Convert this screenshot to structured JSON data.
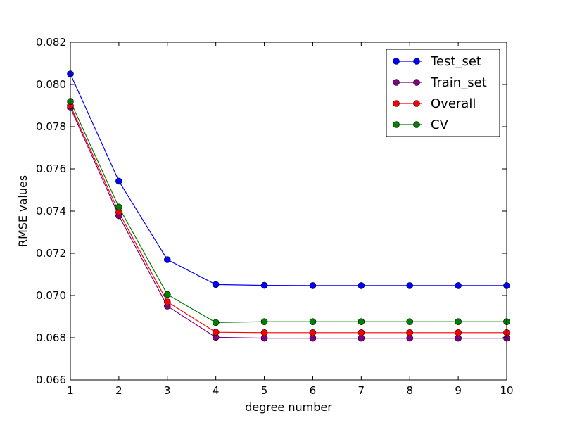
{
  "chart_data": {
    "type": "line",
    "title": "",
    "xlabel": "degree number",
    "ylabel": "RMSE values",
    "xlim": [
      1,
      10
    ],
    "ylim": [
      0.066,
      0.082
    ],
    "x": [
      1,
      2,
      3,
      4,
      5,
      6,
      7,
      8,
      9,
      10
    ],
    "x_ticks": [
      "1",
      "2",
      "3",
      "4",
      "5",
      "6",
      "7",
      "8",
      "9",
      "10"
    ],
    "y_tick_values": [
      0.066,
      0.068,
      0.07,
      0.072,
      0.074,
      0.076,
      0.078,
      0.08,
      0.082
    ],
    "y_ticks": [
      "0.066",
      "0.068",
      "0.070",
      "0.072",
      "0.074",
      "0.076",
      "0.078",
      "0.080",
      "0.082"
    ],
    "grid": false,
    "legend_position": "top-right",
    "series": [
      {
        "name": "Test_set",
        "color": "#0000ff",
        "values": [
          0.0805,
          0.07542,
          0.0717,
          0.07052,
          0.07048,
          0.07047,
          0.07047,
          0.07047,
          0.07047,
          0.07047
        ]
      },
      {
        "name": "Train_set",
        "color": "#800080",
        "values": [
          0.0789,
          0.07378,
          0.0695,
          0.06802,
          0.06798,
          0.06798,
          0.06798,
          0.06798,
          0.06798,
          0.06798
        ]
      },
      {
        "name": "Overall",
        "color": "#ff0000",
        "values": [
          0.079,
          0.07395,
          0.0697,
          0.06826,
          0.06824,
          0.06824,
          0.06824,
          0.06824,
          0.06824,
          0.06824
        ]
      },
      {
        "name": "CV",
        "color": "#008000",
        "values": [
          0.0792,
          0.07419,
          0.07005,
          0.06872,
          0.06876,
          0.06876,
          0.06876,
          0.06876,
          0.06876,
          0.06876
        ]
      }
    ]
  }
}
